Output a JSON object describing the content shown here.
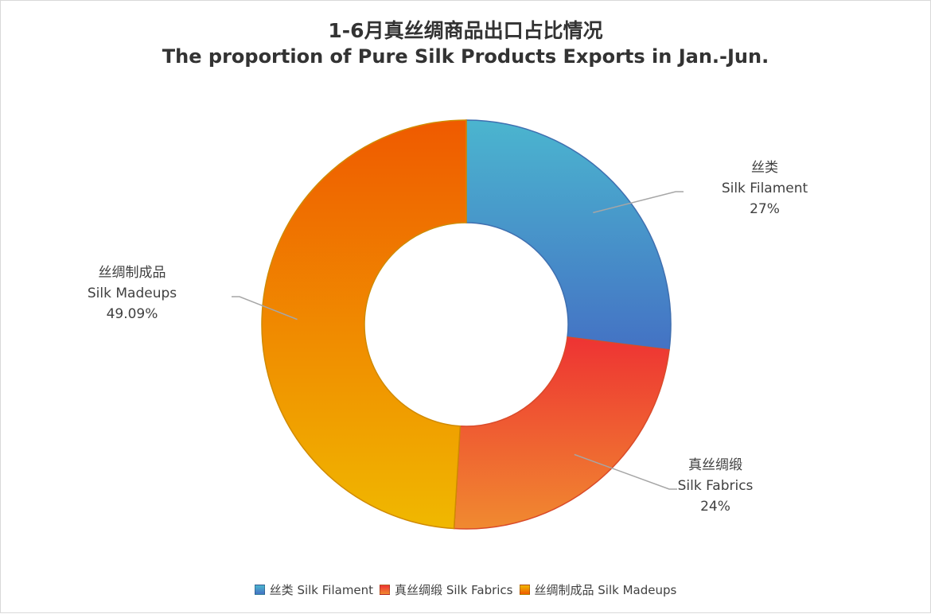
{
  "title_cn": "1-6月真丝绸商品出口占比情况",
  "title_en": "The proportion of Pure Silk Products Exports in Jan.-Jun.",
  "chart_data": {
    "type": "pie",
    "variant": "donut",
    "title": "1-6月真丝绸商品出口占比情况",
    "subtitle": "The proportion of Pure Silk Products Exports in Jan.-Jun.",
    "legend_position": "bottom",
    "series": [
      {
        "name_cn": "丝类",
        "name_en": "Silk Filament",
        "legend_label": "丝类 Silk Filament",
        "value": 27,
        "value_label": "27%",
        "color_start": "#4bb5cf",
        "color_end": "#4472c4"
      },
      {
        "name_cn": "真丝绸缎",
        "name_en": "Silk Fabrics",
        "legend_label": "真丝绸缎 Silk Fabrics",
        "value": 24,
        "value_label": "24%",
        "color_start": "#ee3333",
        "color_end": "#f08a30"
      },
      {
        "name_cn": "丝绸制成品",
        "name_en": "Silk Madeups",
        "legend_label": "丝绸制成品 Silk Madeups",
        "value": 49.09,
        "value_label": "49.09%",
        "color_start": "#f0b800",
        "color_end": "#ef5a00"
      }
    ]
  }
}
